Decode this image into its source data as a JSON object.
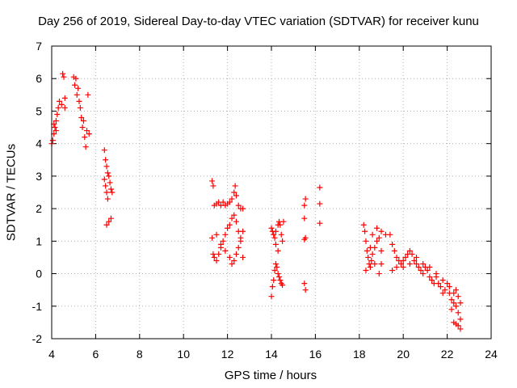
{
  "chart_data": {
    "type": "scatter",
    "title": "Day 256 of 2019, Sidereal Day-to-day VTEC variation (SDTVAR) for receiver kunu",
    "xlabel": "GPS time / hours",
    "ylabel": "SDTVAR / TECUs",
    "xlim": [
      4,
      24
    ],
    "ylim": [
      -2,
      7
    ],
    "xticks": [
      4,
      6,
      8,
      10,
      12,
      14,
      16,
      18,
      20,
      22,
      24
    ],
    "yticks": [
      -2,
      -1,
      0,
      1,
      2,
      3,
      4,
      5,
      6,
      7
    ],
    "grid": true,
    "marker": "+",
    "color": "#ff0000",
    "series": [
      {
        "name": "SDTVAR",
        "points": [
          [
            4.0,
            4.0
          ],
          [
            4.05,
            4.1
          ],
          [
            4.1,
            4.3
          ],
          [
            4.15,
            4.5
          ],
          [
            4.2,
            4.7
          ],
          [
            4.25,
            4.9
          ],
          [
            4.3,
            5.1
          ],
          [
            4.35,
            5.3
          ],
          [
            4.1,
            4.6
          ],
          [
            4.2,
            4.4
          ],
          [
            4.45,
            5.2
          ],
          [
            4.5,
            6.15
          ],
          [
            4.55,
            6.05
          ],
          [
            4.6,
            5.4
          ],
          [
            4.6,
            5.1
          ],
          [
            5.0,
            6.05
          ],
          [
            5.05,
            5.8
          ],
          [
            5.1,
            6.0
          ],
          [
            5.15,
            5.5
          ],
          [
            5.2,
            5.7
          ],
          [
            5.25,
            5.3
          ],
          [
            5.3,
            5.1
          ],
          [
            5.35,
            4.8
          ],
          [
            5.4,
            4.5
          ],
          [
            5.45,
            4.7
          ],
          [
            5.5,
            4.2
          ],
          [
            5.55,
            3.9
          ],
          [
            5.6,
            4.4
          ],
          [
            5.65,
            5.5
          ],
          [
            5.7,
            4.3
          ],
          [
            6.4,
            3.8
          ],
          [
            6.45,
            3.5
          ],
          [
            6.5,
            3.3
          ],
          [
            6.55,
            3.1
          ],
          [
            6.6,
            3.0
          ],
          [
            6.65,
            2.8
          ],
          [
            6.7,
            2.6
          ],
          [
            6.75,
            2.5
          ],
          [
            6.4,
            2.9
          ],
          [
            6.45,
            2.7
          ],
          [
            6.5,
            2.5
          ],
          [
            6.55,
            2.3
          ],
          [
            6.6,
            1.6
          ],
          [
            6.7,
            1.7
          ],
          [
            6.5,
            1.5
          ],
          [
            11.3,
            2.85
          ],
          [
            11.35,
            2.7
          ],
          [
            11.4,
            2.1
          ],
          [
            11.5,
            2.15
          ],
          [
            11.6,
            2.2
          ],
          [
            11.7,
            2.1
          ],
          [
            11.8,
            2.2
          ],
          [
            11.9,
            2.1
          ],
          [
            12.0,
            2.15
          ],
          [
            12.1,
            2.2
          ],
          [
            12.2,
            2.3
          ],
          [
            12.3,
            2.5
          ],
          [
            12.35,
            2.7
          ],
          [
            12.4,
            2.4
          ],
          [
            12.5,
            2.1
          ],
          [
            12.6,
            2.0
          ],
          [
            11.3,
            1.1
          ],
          [
            11.35,
            0.6
          ],
          [
            11.4,
            0.5
          ],
          [
            11.5,
            0.4
          ],
          [
            11.6,
            0.6
          ],
          [
            11.7,
            0.8
          ],
          [
            11.8,
            1.0
          ],
          [
            11.9,
            1.2
          ],
          [
            12.0,
            1.4
          ],
          [
            12.1,
            1.5
          ],
          [
            12.2,
            1.7
          ],
          [
            12.3,
            1.8
          ],
          [
            12.4,
            1.6
          ],
          [
            12.5,
            1.3
          ],
          [
            12.6,
            1.0
          ],
          [
            11.5,
            1.2
          ],
          [
            11.7,
            0.9
          ],
          [
            11.9,
            0.7
          ],
          [
            12.1,
            0.5
          ],
          [
            12.2,
            0.3
          ],
          [
            12.3,
            0.4
          ],
          [
            12.4,
            0.6
          ],
          [
            12.5,
            0.8
          ],
          [
            12.6,
            1.1
          ],
          [
            12.7,
            1.3
          ],
          [
            12.7,
            0.5
          ],
          [
            12.7,
            2.0
          ],
          [
            14.0,
            -0.7
          ],
          [
            14.05,
            -0.4
          ],
          [
            14.1,
            -0.2
          ],
          [
            14.15,
            0.1
          ],
          [
            14.2,
            0.3
          ],
          [
            14.25,
            0.2
          ],
          [
            14.3,
            0.0
          ],
          [
            14.35,
            -0.1
          ],
          [
            14.4,
            -0.2
          ],
          [
            14.45,
            -0.3
          ],
          [
            14.5,
            -0.35
          ],
          [
            14.0,
            1.4
          ],
          [
            14.05,
            1.3
          ],
          [
            14.1,
            1.2
          ],
          [
            14.15,
            1.1
          ],
          [
            14.2,
            1.3
          ],
          [
            14.3,
            1.5
          ],
          [
            14.35,
            1.6
          ],
          [
            14.4,
            1.5
          ],
          [
            14.45,
            1.2
          ],
          [
            14.5,
            1.0
          ],
          [
            14.55,
            1.6
          ],
          [
            14.2,
            0.9
          ],
          [
            14.3,
            0.7
          ],
          [
            15.5,
            2.1
          ],
          [
            15.55,
            2.3
          ],
          [
            15.5,
            1.7
          ],
          [
            15.55,
            1.1
          ],
          [
            15.5,
            1.05
          ],
          [
            15.5,
            -0.3
          ],
          [
            15.55,
            -0.5
          ],
          [
            16.2,
            2.65
          ],
          [
            16.2,
            2.15
          ],
          [
            16.2,
            1.55
          ],
          [
            18.2,
            1.5
          ],
          [
            18.25,
            1.3
          ],
          [
            18.3,
            1.0
          ],
          [
            18.35,
            0.7
          ],
          [
            18.4,
            0.5
          ],
          [
            18.45,
            0.3
          ],
          [
            18.5,
            0.2
          ],
          [
            18.55,
            0.4
          ],
          [
            18.6,
            0.6
          ],
          [
            18.7,
            0.8
          ],
          [
            18.8,
            1.0
          ],
          [
            18.9,
            1.1
          ],
          [
            19.0,
            0.7
          ],
          [
            18.3,
            0.1
          ],
          [
            18.5,
            0.8
          ],
          [
            18.7,
            0.3
          ],
          [
            18.9,
            0.0
          ],
          [
            19.0,
            0.3
          ],
          [
            18.6,
            1.2
          ],
          [
            18.8,
            1.4
          ],
          [
            19.0,
            1.3
          ],
          [
            19.2,
            1.2
          ],
          [
            19.4,
            1.2
          ],
          [
            19.5,
            0.9
          ],
          [
            19.6,
            0.7
          ],
          [
            19.7,
            0.5
          ],
          [
            19.8,
            0.4
          ],
          [
            19.9,
            0.3
          ],
          [
            20.0,
            0.2
          ],
          [
            20.1,
            0.5
          ],
          [
            20.2,
            0.6
          ],
          [
            20.3,
            0.7
          ],
          [
            20.4,
            0.6
          ],
          [
            20.5,
            0.4
          ],
          [
            20.6,
            0.3
          ],
          [
            20.7,
            0.2
          ],
          [
            20.8,
            0.1
          ],
          [
            20.9,
            0.0
          ],
          [
            21.0,
            0.2
          ],
          [
            21.1,
            0.1
          ],
          [
            21.2,
            -0.1
          ],
          [
            21.3,
            -0.2
          ],
          [
            21.4,
            -0.3
          ],
          [
            21.5,
            -0.1
          ],
          [
            21.6,
            -0.3
          ],
          [
            21.7,
            -0.4
          ],
          [
            21.8,
            -0.6
          ],
          [
            21.9,
            -0.5
          ],
          [
            22.0,
            -0.3
          ],
          [
            22.1,
            -0.6
          ],
          [
            22.2,
            -0.8
          ],
          [
            22.3,
            -0.9
          ],
          [
            22.4,
            -0.5
          ],
          [
            22.5,
            -0.7
          ],
          [
            22.6,
            -0.9
          ],
          [
            19.5,
            0.1
          ],
          [
            19.7,
            0.2
          ],
          [
            20.0,
            0.4
          ],
          [
            20.3,
            0.3
          ],
          [
            20.6,
            0.5
          ],
          [
            20.9,
            0.3
          ],
          [
            21.2,
            0.2
          ],
          [
            21.5,
            0.0
          ],
          [
            21.8,
            -0.2
          ],
          [
            22.1,
            -0.4
          ],
          [
            22.3,
            -0.6
          ],
          [
            22.4,
            -1.0
          ],
          [
            22.5,
            -1.2
          ],
          [
            22.6,
            -1.4
          ],
          [
            22.2,
            -1.1
          ],
          [
            22.3,
            -1.5
          ],
          [
            22.4,
            -1.55
          ],
          [
            22.5,
            -1.6
          ],
          [
            22.6,
            -1.7
          ]
        ]
      }
    ]
  }
}
